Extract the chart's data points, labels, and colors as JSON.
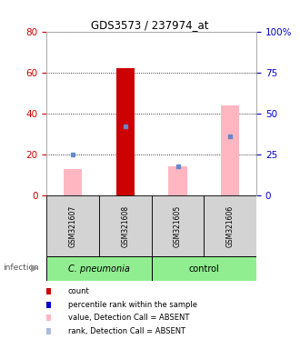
{
  "title": "GDS3573 / 237974_at",
  "samples": [
    "GSM321607",
    "GSM321608",
    "GSM321605",
    "GSM321606"
  ],
  "groups": [
    {
      "label": "C. pneumonia",
      "color": "#90ee90",
      "style": "italic"
    },
    {
      "label": "control",
      "color": "#90ee90",
      "style": "normal"
    }
  ],
  "red_bar_values": [
    0,
    62,
    0,
    0
  ],
  "pink_bar_values": [
    13,
    0,
    14,
    44
  ],
  "blue_rank_values": [
    25,
    42,
    18,
    36
  ],
  "left_ylim": [
    0,
    80
  ],
  "right_ylim": [
    0,
    100
  ],
  "left_yticks": [
    0,
    20,
    40,
    60,
    80
  ],
  "right_yticks": [
    0,
    25,
    50,
    75,
    100
  ],
  "right_yticklabels": [
    "0",
    "25",
    "50",
    "75",
    "100%"
  ],
  "left_axis_color": "#cc0000",
  "right_axis_color": "#0000cc",
  "plot_bg_color": "#ffffff",
  "sample_box_color": "#d3d3d3",
  "red_bar_color": "#cc0000",
  "pink_bar_color": "#ffb6c1",
  "blue_rank_color": "#6688cc",
  "blue_present_color": "#0000cc",
  "legend_items": [
    {
      "color": "#cc0000",
      "marker": "square",
      "label": "count"
    },
    {
      "color": "#0000cc",
      "marker": "square",
      "label": "percentile rank within the sample"
    },
    {
      "color": "#ffb6c1",
      "marker": "square",
      "label": "value, Detection Call = ABSENT"
    },
    {
      "color": "#aabbdd",
      "marker": "square",
      "label": "rank, Detection Call = ABSENT"
    }
  ]
}
